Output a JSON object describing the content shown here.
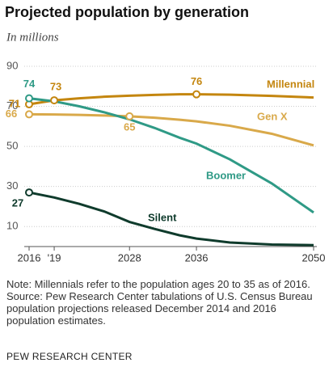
{
  "chart_data": {
    "type": "line",
    "title": "Projected population by generation",
    "subtitle": "In millions",
    "x": [
      2016,
      2019,
      2022,
      2025,
      2028,
      2031,
      2034,
      2036,
      2040,
      2045,
      2050
    ],
    "series": [
      {
        "name": "Millennial",
        "color": "#c4860f",
        "values": [
          71,
          73,
          74,
          74.8,
          75.3,
          75.7,
          76,
          76,
          75.8,
          75.2,
          74.4
        ]
      },
      {
        "name": "Gen X",
        "color": "#d9a94a",
        "values": [
          66,
          65.9,
          65.7,
          65.4,
          65,
          64.3,
          63.3,
          62.5,
          60.3,
          56.3,
          50.5
        ]
      },
      {
        "name": "Boomer",
        "color": "#2f9a86",
        "values": [
          74,
          72.5,
          70,
          67,
          63.5,
          59.2,
          54.3,
          51.4,
          43.5,
          31.5,
          17
        ]
      },
      {
        "name": "Silent",
        "color": "#0f3b2c",
        "values": [
          27,
          24.5,
          21.3,
          17.5,
          12.3,
          8.8,
          5.6,
          4,
          2,
          1,
          0.7
        ]
      }
    ],
    "xlim": [
      2016,
      2050
    ],
    "xticks": [
      2016,
      {
        "value": 2019,
        "label": "'19"
      },
      2028,
      2036,
      2050
    ],
    "ylim": [
      0,
      92
    ],
    "yticks": [
      10,
      30,
      50,
      70,
      90
    ],
    "grid": true,
    "note": "Note: Millennials refer to the population ages 20 to 35 as of 2016.",
    "source": "Source: Pew Research Center tabulations of U.S. Census Bureau population projections released December 2014 and 2016 population estimates.",
    "footer": "PEW RESEARCH CENTER"
  }
}
